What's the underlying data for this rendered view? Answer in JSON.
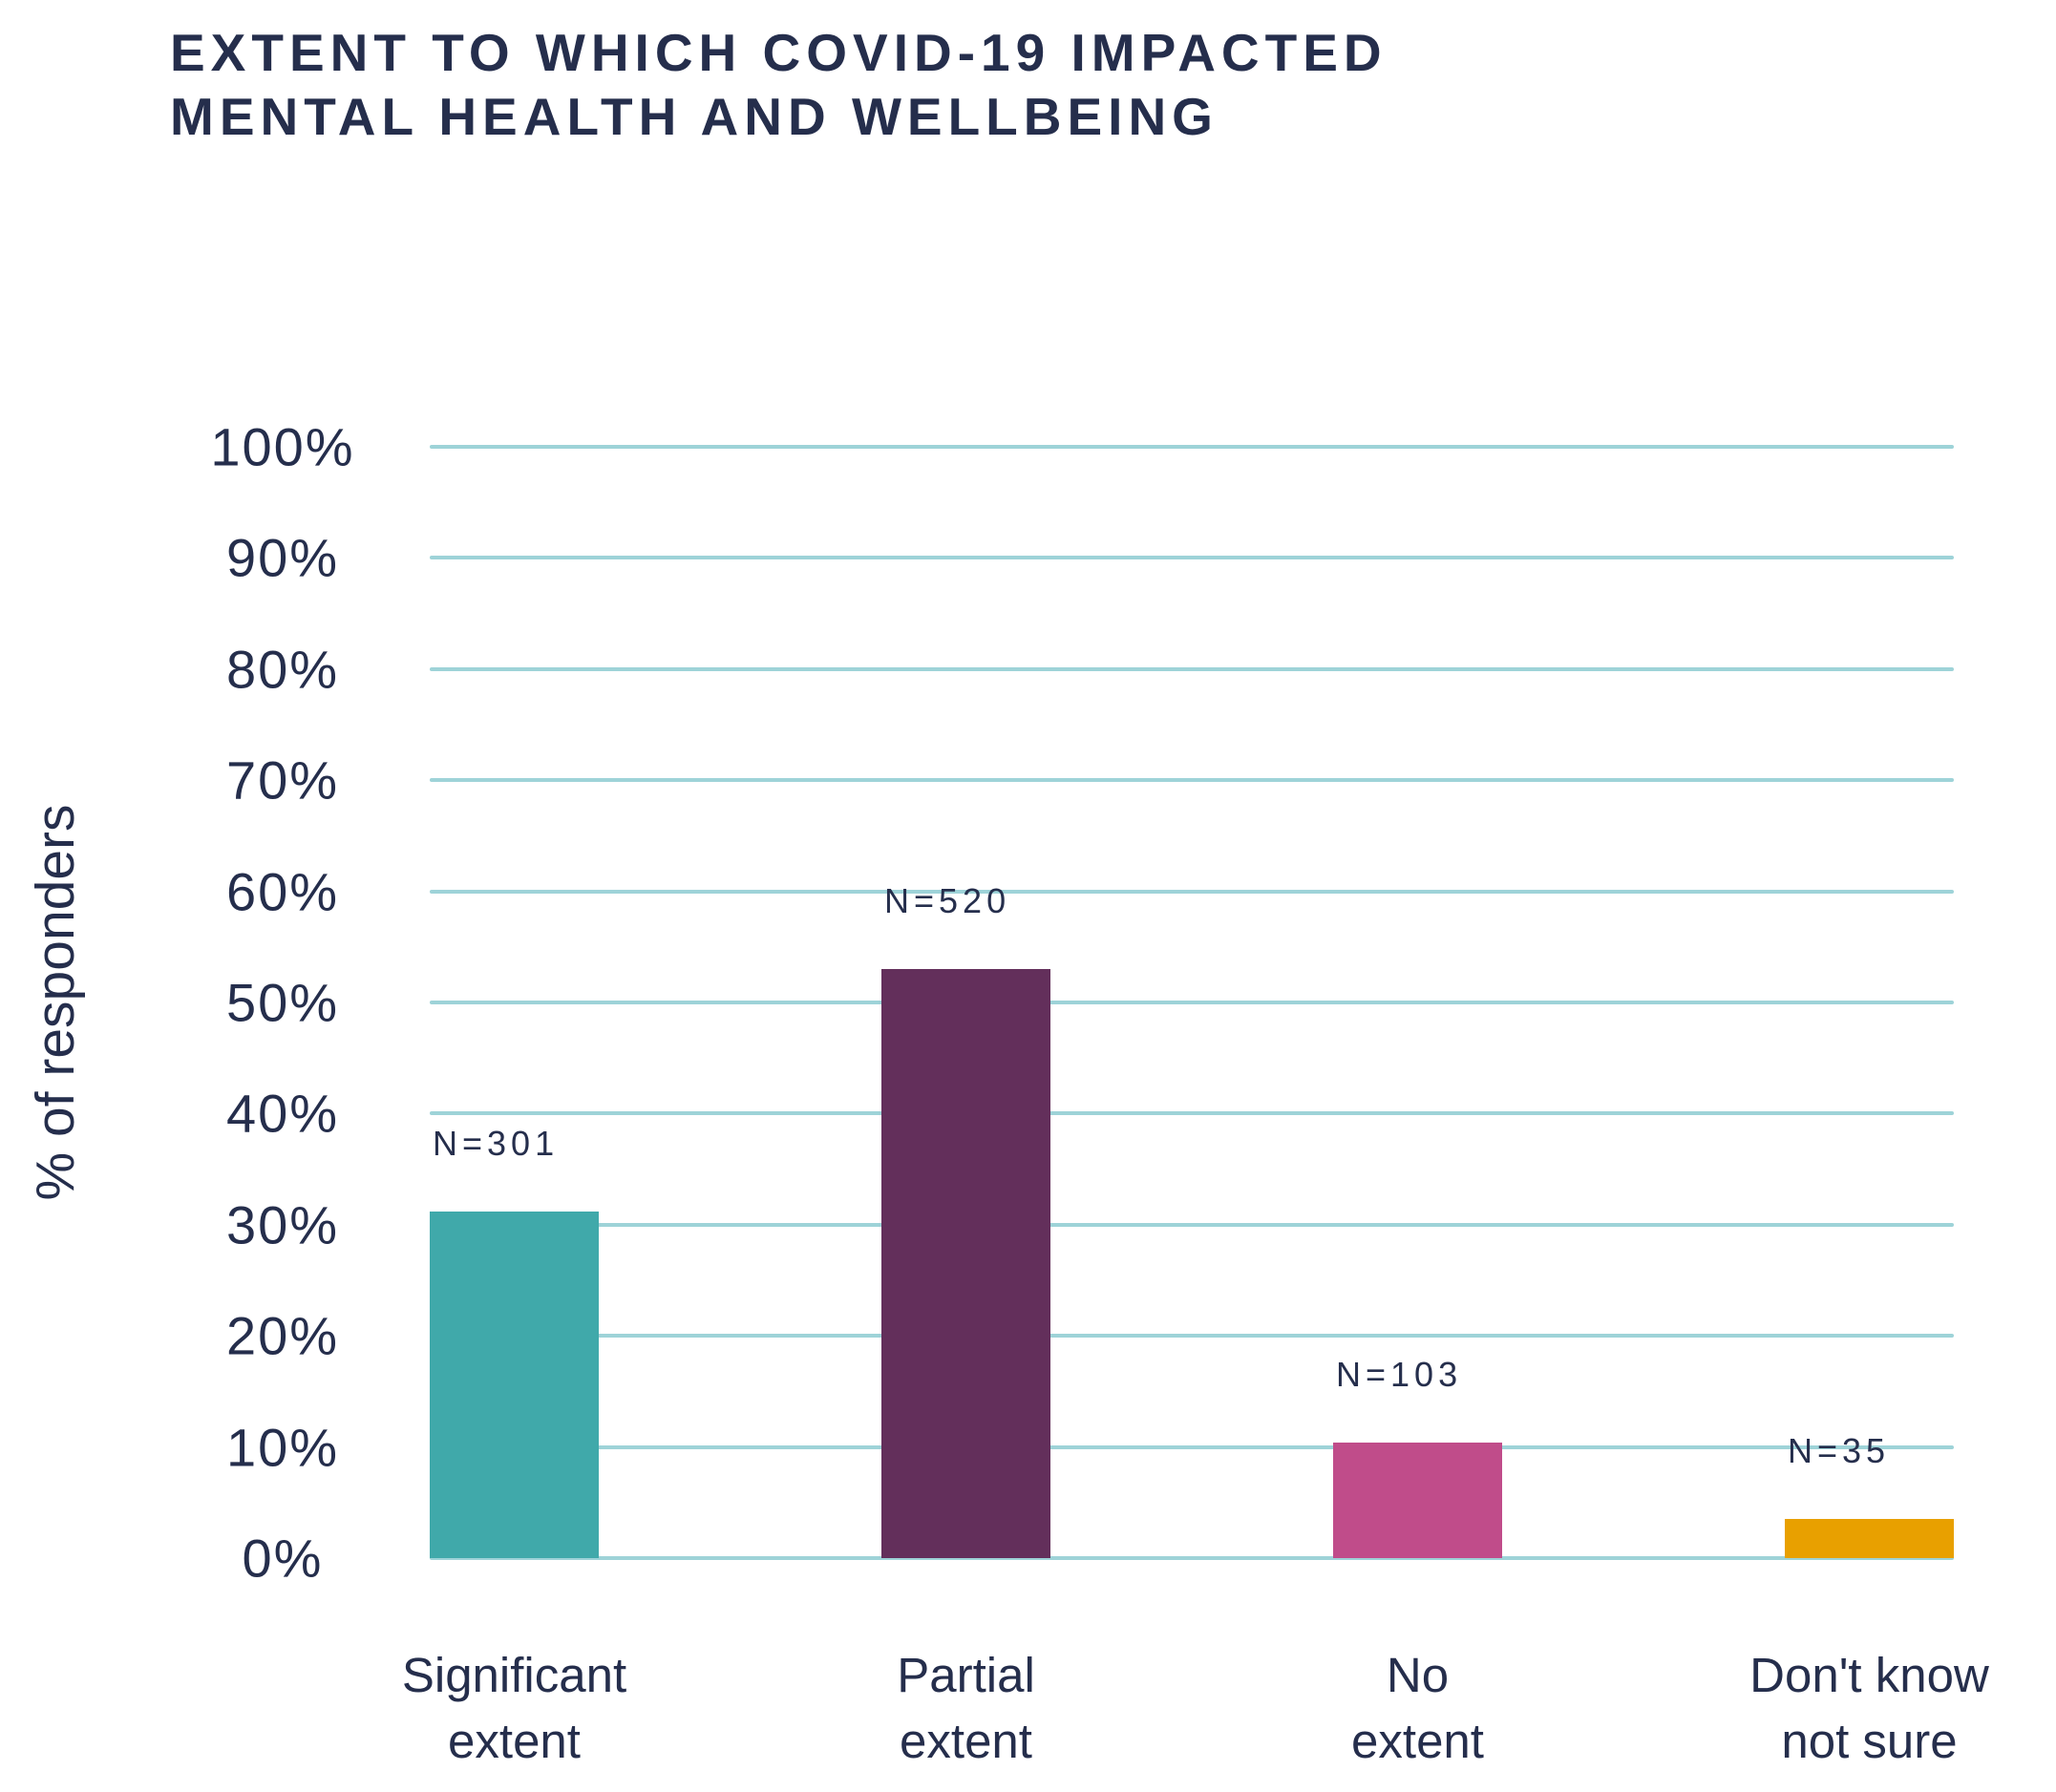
{
  "title": {
    "line1": "EXTENT TO WHICH COVID-19 IMPACTED",
    "line2": "MENTAL HEALTH AND WELLBEING"
  },
  "chart_data": {
    "type": "bar",
    "title": "EXTENT TO WHICH COVID-19 IMPACTED MENTAL HEALTH AND WELLBEING",
    "xlabel": "",
    "ylabel": "% of responders",
    "ylim": [
      0,
      100
    ],
    "grid": true,
    "legend": "none",
    "y_ticks": [
      "100%",
      "90%",
      "80%",
      "70%",
      "60%",
      "50%",
      "40%",
      "30%",
      "20%",
      "10%",
      "0%"
    ],
    "categories": [
      [
        "Significant",
        "extent"
      ],
      [
        "Partial",
        "extent"
      ],
      [
        "No",
        "extent"
      ],
      [
        "Don't know",
        "not sure"
      ]
    ],
    "series": [
      {
        "name": "% of responders",
        "values_pct": [
          31.2,
          53,
          10.4,
          3.5
        ],
        "counts": [
          301,
          520,
          103,
          35
        ]
      }
    ],
    "bar_labels": [
      "N=301",
      "N=520",
      "N=103",
      "N=35"
    ],
    "bar_colors": [
      "#40A9AA",
      "#632F5B",
      "#C04C8A",
      "#E8A000"
    ],
    "gridline_color": "#9ED3D8",
    "text_color": "#252E4C"
  }
}
